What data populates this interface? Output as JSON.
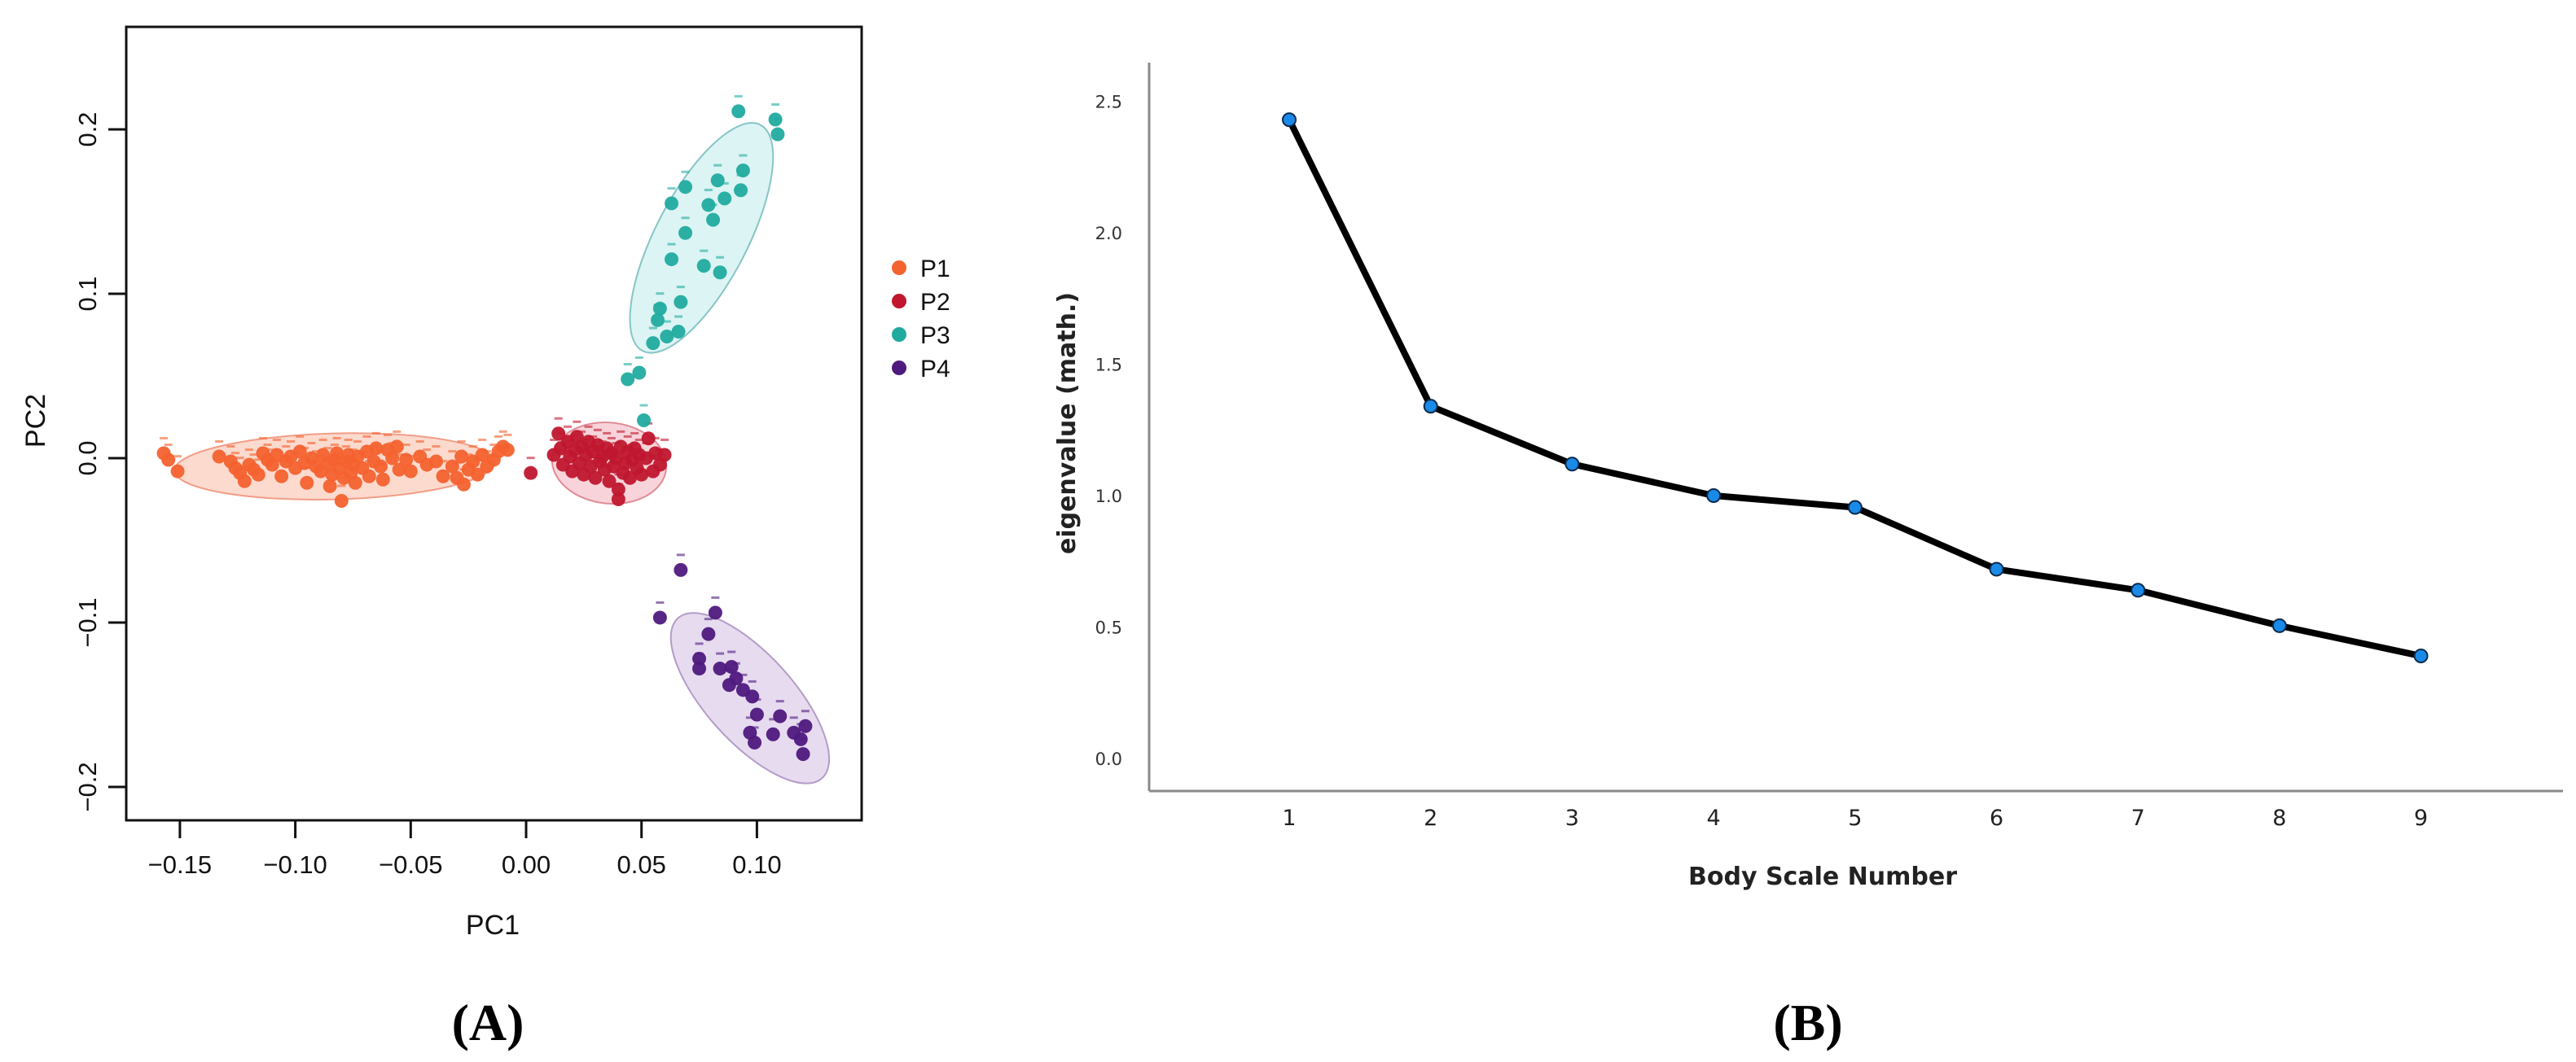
{
  "panels": {
    "a": {
      "caption": "(A)"
    },
    "b": {
      "caption": "(B)"
    }
  },
  "chart_data": [
    {
      "type": "scatter",
      "panel": "A",
      "title": "",
      "xlabel": "PC1",
      "ylabel": "PC2",
      "xlim": [
        -0.175,
        0.13
      ],
      "ylim": [
        -0.22,
        0.255
      ],
      "xticks": [
        "-0.15",
        "-0.10",
        "-0.05",
        "0.00",
        "0.05",
        "0.10"
      ],
      "xtick_values": [
        -0.15,
        -0.1,
        -0.05,
        0.0,
        0.05,
        0.1
      ],
      "yticks": [
        "-0.2",
        "-0.1",
        "0.0",
        "0.1",
        "0.2"
      ],
      "ytick_values": [
        -0.2,
        -0.1,
        0.0,
        0.1,
        0.2
      ],
      "grid": false,
      "legend_position": "right",
      "series": [
        {
          "name": "P1",
          "color": "#f4622f",
          "ellipse": {
            "cx": -0.083,
            "cy": -0.005,
            "rx": 0.081,
            "ry": 0.0167,
            "angle_deg": -1.5,
            "fill": "#fbd3c6",
            "stroke": "#f29d86"
          },
          "points": [
            [
              -0.157,
              0.003
            ],
            [
              -0.155,
              -0.001
            ],
            [
              -0.151,
              -0.008
            ],
            [
              -0.133,
              0.001
            ],
            [
              -0.128,
              -0.002
            ],
            [
              -0.126,
              -0.006
            ],
            [
              -0.124,
              -0.009
            ],
            [
              -0.122,
              -0.014
            ],
            [
              -0.12,
              -0.004
            ],
            [
              -0.118,
              -0.007
            ],
            [
              -0.116,
              -0.01
            ],
            [
              -0.114,
              0.003
            ],
            [
              -0.112,
              -0.001
            ],
            [
              -0.11,
              -0.004
            ],
            [
              -0.108,
              0.002
            ],
            [
              -0.106,
              -0.011
            ],
            [
              -0.104,
              -0.002
            ],
            [
              -0.102,
              0.001
            ],
            [
              -0.1,
              -0.006
            ],
            [
              -0.098,
              0.004
            ],
            [
              -0.096,
              -0.003
            ],
            [
              -0.095,
              -0.015
            ],
            [
              -0.093,
              0.0
            ],
            [
              -0.091,
              -0.005
            ],
            [
              -0.089,
              -0.008
            ],
            [
              -0.088,
              0.002
            ],
            [
              -0.086,
              -0.003
            ],
            [
              -0.085,
              -0.017
            ],
            [
              -0.084,
              -0.01
            ],
            [
              -0.083,
              -0.001
            ],
            [
              -0.082,
              0.003
            ],
            [
              -0.081,
              -0.006
            ],
            [
              -0.08,
              -0.026
            ],
            [
              -0.079,
              -0.012
            ],
            [
              -0.078,
              -0.002
            ],
            [
              -0.077,
              0.002
            ],
            [
              -0.076,
              -0.009
            ],
            [
              -0.075,
              -0.004
            ],
            [
              -0.074,
              -0.015
            ],
            [
              -0.073,
              0.001
            ],
            [
              -0.071,
              -0.006
            ],
            [
              -0.069,
              0.004
            ],
            [
              -0.068,
              -0.011
            ],
            [
              -0.066,
              -0.002
            ],
            [
              -0.065,
              0.006
            ],
            [
              -0.063,
              -0.005
            ],
            [
              -0.062,
              -0.013
            ],
            [
              -0.06,
              0.005
            ],
            [
              -0.058,
              0.0
            ],
            [
              -0.056,
              0.007
            ],
            [
              -0.055,
              -0.007
            ],
            [
              -0.052,
              -0.001
            ],
            [
              -0.05,
              -0.008
            ],
            [
              -0.046,
              0.001
            ],
            [
              -0.043,
              -0.004
            ],
            [
              -0.039,
              -0.002
            ],
            [
              -0.036,
              -0.011
            ],
            [
              -0.032,
              -0.005
            ],
            [
              -0.03,
              -0.012
            ],
            [
              -0.028,
              0.001
            ],
            [
              -0.027,
              -0.016
            ],
            [
              -0.025,
              -0.007
            ],
            [
              -0.023,
              -0.002
            ],
            [
              -0.021,
              -0.01
            ],
            [
              -0.019,
              0.002
            ],
            [
              -0.017,
              -0.005
            ],
            [
              -0.014,
              -0.001
            ],
            [
              -0.012,
              0.004
            ],
            [
              -0.01,
              0.007
            ],
            [
              -0.008,
              0.005
            ]
          ]
        },
        {
          "name": "P2",
          "color": "#c0172f",
          "ellipse": {
            "cx": 0.036,
            "cy": -0.003,
            "rx": 0.029,
            "ry": 0.0205,
            "angle_deg": 6,
            "fill": "#f7cdd3",
            "stroke": "#e08b97"
          },
          "points": [
            [
              0.002,
              -0.009
            ],
            [
              0.012,
              0.002
            ],
            [
              0.014,
              0.015
            ],
            [
              0.015,
              0.006
            ],
            [
              0.016,
              -0.004
            ],
            [
              0.018,
              0.01
            ],
            [
              0.019,
              0.001
            ],
            [
              0.02,
              -0.008
            ],
            [
              0.021,
              0.005
            ],
            [
              0.022,
              0.013
            ],
            [
              0.023,
              -0.003
            ],
            [
              0.024,
              0.007
            ],
            [
              0.025,
              -0.01
            ],
            [
              0.026,
              0.002
            ],
            [
              0.027,
              0.01
            ],
            [
              0.028,
              -0.005
            ],
            [
              0.029,
              0.004
            ],
            [
              0.03,
              -0.012
            ],
            [
              0.031,
              0.008
            ],
            [
              0.032,
              -0.002
            ],
            [
              0.033,
              0.001
            ],
            [
              0.034,
              -0.007
            ],
            [
              0.035,
              0.006
            ],
            [
              0.036,
              -0.014
            ],
            [
              0.037,
              0.003
            ],
            [
              0.038,
              -0.005
            ],
            [
              0.039,
              0.0
            ],
            [
              0.04,
              -0.019
            ],
            [
              0.04,
              -0.025
            ],
            [
              0.041,
              0.007
            ],
            [
              0.042,
              -0.009
            ],
            [
              0.043,
              -0.003
            ],
            [
              0.044,
              0.004
            ],
            [
              0.045,
              -0.012
            ],
            [
              0.046,
              -0.001
            ],
            [
              0.047,
              0.006
            ],
            [
              0.048,
              -0.006
            ],
            [
              0.049,
              0.002
            ],
            [
              0.05,
              -0.01
            ],
            [
              0.052,
              0.0
            ],
            [
              0.053,
              0.012
            ],
            [
              0.055,
              -0.008
            ],
            [
              0.056,
              0.003
            ],
            [
              0.058,
              -0.004
            ],
            [
              0.06,
              0.002
            ]
          ]
        },
        {
          "name": "P3",
          "color": "#21ab9f",
          "ellipse": {
            "cx": 0.076,
            "cy": 0.134,
            "rx": 0.0645,
            "ry": 0.0232,
            "angle_deg": -62.5,
            "fill": "#d6f2f2",
            "stroke": "#86c5c7"
          },
          "points": [
            [
              0.092,
              0.211
            ],
            [
              0.108,
              0.206
            ],
            [
              0.109,
              0.197
            ],
            [
              0.094,
              0.175
            ],
            [
              0.093,
              0.163
            ],
            [
              0.083,
              0.169
            ],
            [
              0.086,
              0.158
            ],
            [
              0.069,
              0.165
            ],
            [
              0.063,
              0.155
            ],
            [
              0.079,
              0.154
            ],
            [
              0.081,
              0.145
            ],
            [
              0.069,
              0.137
            ],
            [
              0.063,
              0.121
            ],
            [
              0.077,
              0.117
            ],
            [
              0.084,
              0.113
            ],
            [
              0.067,
              0.095
            ],
            [
              0.058,
              0.091
            ],
            [
              0.057,
              0.084
            ],
            [
              0.066,
              0.077
            ],
            [
              0.061,
              0.074
            ],
            [
              0.055,
              0.07
            ],
            [
              0.049,
              0.052
            ],
            [
              0.044,
              0.048
            ],
            [
              0.051,
              0.023
            ]
          ]
        },
        {
          "name": "P4",
          "color": "#4f1a7e",
          "ellipse": {
            "cx": 0.097,
            "cy": -0.146,
            "rx": 0.0545,
            "ry": 0.0222,
            "angle_deg": 48,
            "fill": "#e3d5ec",
            "stroke": "#b39cc8"
          },
          "points": [
            [
              0.067,
              -0.068
            ],
            [
              0.058,
              -0.097
            ],
            [
              0.082,
              -0.094
            ],
            [
              0.079,
              -0.107
            ],
            [
              0.075,
              -0.122
            ],
            [
              0.075,
              -0.128
            ],
            [
              0.084,
              -0.128
            ],
            [
              0.089,
              -0.127
            ],
            [
              0.088,
              -0.138
            ],
            [
              0.091,
              -0.134
            ],
            [
              0.094,
              -0.141
            ],
            [
              0.098,
              -0.145
            ],
            [
              0.1,
              -0.156
            ],
            [
              0.097,
              -0.167
            ],
            [
              0.099,
              -0.173
            ],
            [
              0.107,
              -0.168
            ],
            [
              0.11,
              -0.157
            ],
            [
              0.116,
              -0.167
            ],
            [
              0.119,
              -0.171
            ],
            [
              0.121,
              -0.163
            ],
            [
              0.12,
              -0.18
            ]
          ]
        }
      ]
    },
    {
      "type": "line",
      "panel": "B",
      "title": "",
      "xlabel": "Body Scale Number",
      "ylabel": "eigenvalue (math.)",
      "categories": [
        "1",
        "2",
        "3",
        "4",
        "5",
        "6",
        "7",
        "8",
        "9"
      ],
      "x": [
        1,
        2,
        3,
        4,
        5,
        6,
        7,
        8,
        9
      ],
      "values": [
        2.43,
        1.34,
        1.12,
        1.0,
        0.955,
        0.72,
        0.64,
        0.505,
        0.39
      ],
      "ylim": [
        -0.12,
        2.65
      ],
      "yticks": [
        "0.0",
        "0.5",
        "1.0",
        "1.5",
        "2.0",
        "2.5"
      ],
      "ytick_values": [
        0.0,
        0.5,
        1.0,
        1.5,
        2.0,
        2.5
      ],
      "grid": false,
      "line_color": "#000000",
      "marker_color": "#1a8ae8"
    }
  ]
}
